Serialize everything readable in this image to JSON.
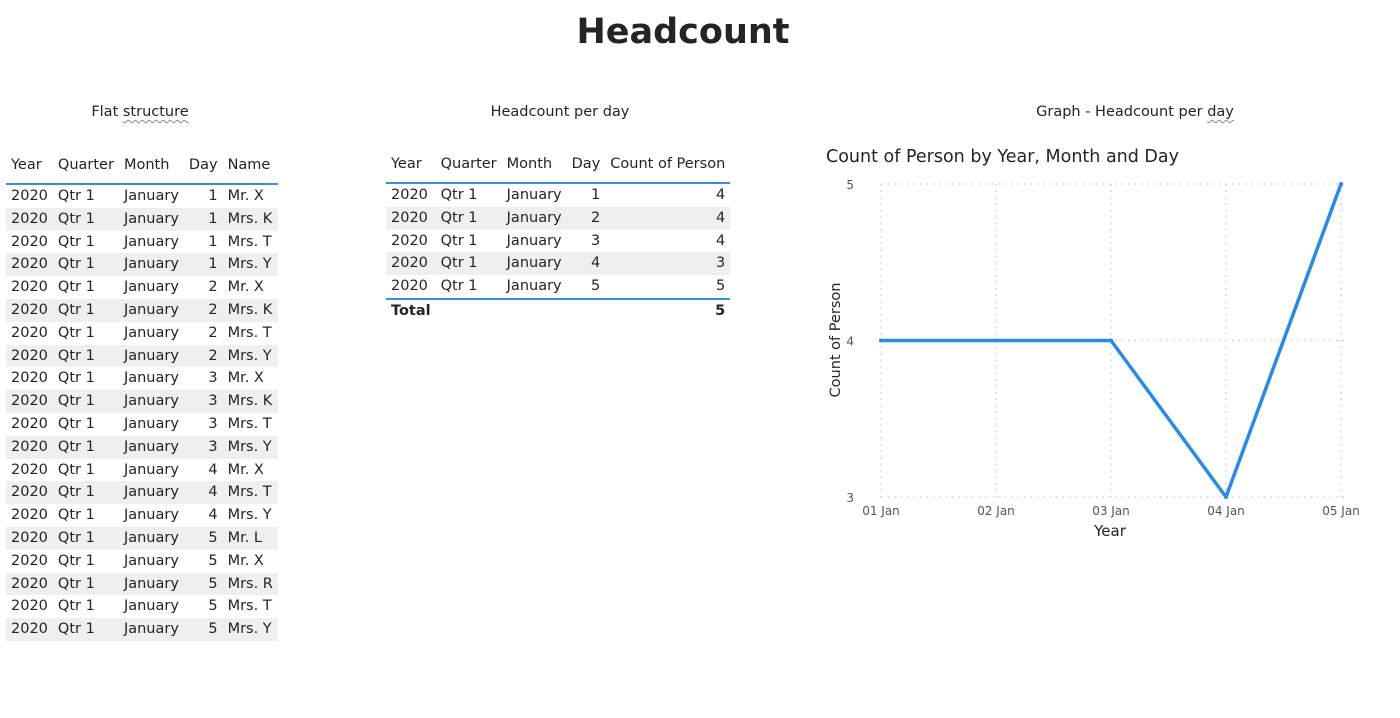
{
  "page": {
    "title": "Headcount"
  },
  "flat": {
    "title_before": "Flat ",
    "title_squiggle": "structure",
    "columns": [
      "Year",
      "Quarter",
      "Month",
      "Day",
      "Name"
    ],
    "rows": [
      [
        "2020",
        "Qtr 1",
        "January",
        "1",
        "Mr. X"
      ],
      [
        "2020",
        "Qtr 1",
        "January",
        "1",
        "Mrs. K"
      ],
      [
        "2020",
        "Qtr 1",
        "January",
        "1",
        "Mrs. T"
      ],
      [
        "2020",
        "Qtr 1",
        "January",
        "1",
        "Mrs. Y"
      ],
      [
        "2020",
        "Qtr 1",
        "January",
        "2",
        "Mr. X"
      ],
      [
        "2020",
        "Qtr 1",
        "January",
        "2",
        "Mrs. K"
      ],
      [
        "2020",
        "Qtr 1",
        "January",
        "2",
        "Mrs. T"
      ],
      [
        "2020",
        "Qtr 1",
        "January",
        "2",
        "Mrs. Y"
      ],
      [
        "2020",
        "Qtr 1",
        "January",
        "3",
        "Mr. X"
      ],
      [
        "2020",
        "Qtr 1",
        "January",
        "3",
        "Mrs. K"
      ],
      [
        "2020",
        "Qtr 1",
        "January",
        "3",
        "Mrs. T"
      ],
      [
        "2020",
        "Qtr 1",
        "January",
        "3",
        "Mrs. Y"
      ],
      [
        "2020",
        "Qtr 1",
        "January",
        "4",
        "Mr. X"
      ],
      [
        "2020",
        "Qtr 1",
        "January",
        "4",
        "Mrs. T"
      ],
      [
        "2020",
        "Qtr 1",
        "January",
        "4",
        "Mrs. Y"
      ],
      [
        "2020",
        "Qtr 1",
        "January",
        "5",
        "Mr. L"
      ],
      [
        "2020",
        "Qtr 1",
        "January",
        "5",
        "Mr. X"
      ],
      [
        "2020",
        "Qtr 1",
        "January",
        "5",
        "Mrs. R"
      ],
      [
        "2020",
        "Qtr 1",
        "January",
        "5",
        "Mrs. T"
      ],
      [
        "2020",
        "Qtr 1",
        "January",
        "5",
        "Mrs. Y"
      ]
    ]
  },
  "perday": {
    "title": "Headcount per day",
    "columns": [
      "Year",
      "Quarter",
      "Month",
      "Day",
      "Count of Person"
    ],
    "rows": [
      [
        "2020",
        "Qtr 1",
        "January",
        "1",
        "4"
      ],
      [
        "2020",
        "Qtr 1",
        "January",
        "2",
        "4"
      ],
      [
        "2020",
        "Qtr 1",
        "January",
        "3",
        "4"
      ],
      [
        "2020",
        "Qtr 1",
        "January",
        "4",
        "3"
      ],
      [
        "2020",
        "Qtr 1",
        "January",
        "5",
        "5"
      ]
    ],
    "total_label": "Total",
    "total_value": "5"
  },
  "graph": {
    "section_title_before": "Graph - Headcount per ",
    "section_title_squiggle": "day"
  },
  "colors": {
    "accent": "#3b8fd6",
    "line": "#2b8ae2",
    "band": "#efefef",
    "grid": "#c8c8c8"
  },
  "chart_data": {
    "type": "line",
    "title": "Count of Person by Year, Month and Day",
    "xlabel": "Year",
    "ylabel": "Count of Person",
    "categories": [
      "01 Jan",
      "02 Jan",
      "03 Jan",
      "04 Jan",
      "05 Jan"
    ],
    "values": [
      4,
      4,
      4,
      3,
      5
    ],
    "yticks": [
      3,
      4,
      5
    ],
    "ylim": [
      3,
      5
    ],
    "grid": true
  }
}
